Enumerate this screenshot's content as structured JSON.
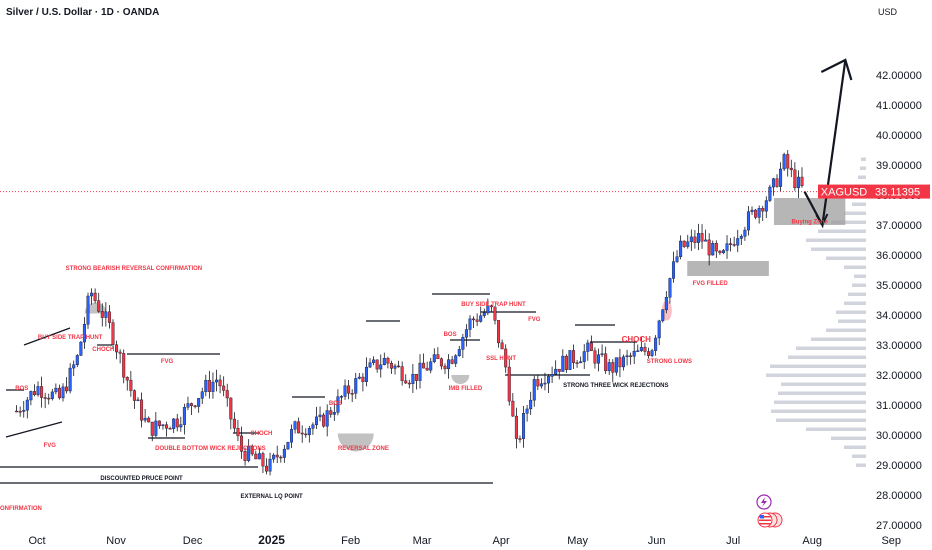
{
  "header": {
    "title": "Silver / U.S. Dollar · 1D · OANDA",
    "currency": "USD"
  },
  "price_tag": {
    "symbol": "XAGUSD",
    "value": "38.11395"
  },
  "colors": {
    "up": "#2962ff",
    "down": "#f23645",
    "annotation": "#f23645",
    "price_tag": "#f23645",
    "zone": "#9e9e9e",
    "volume_profile": "#d1d4dc"
  },
  "chart_data": {
    "type": "candlestick",
    "ylim": [
      27.0,
      43.0
    ],
    "y_ticks": [
      "27.00000",
      "28.00000",
      "29.00000",
      "30.00000",
      "31.00000",
      "32.00000",
      "33.00000",
      "34.00000",
      "35.00000",
      "36.00000",
      "37.00000",
      "38.00000",
      "39.00000",
      "40.00000",
      "41.00000",
      "42.00000"
    ],
    "x_ticks": [
      "Oct",
      "Nov",
      "Dec",
      "2025",
      "Feb",
      "Mar",
      "Apr",
      "May",
      "Jun",
      "Jul",
      "Aug",
      "Sep"
    ],
    "price_path": [
      [
        "2024-09-23",
        30.8
      ],
      [
        "2024-10-01",
        31.6
      ],
      [
        "2024-10-10",
        31.2
      ],
      [
        "2024-10-17",
        32.6
      ],
      [
        "2024-10-22",
        34.8
      ],
      [
        "2024-10-30",
        33.5
      ],
      [
        "2024-11-08",
        31.2
      ],
      [
        "2024-11-14",
        30.2
      ],
      [
        "2024-11-25",
        30.5
      ],
      [
        "2024-12-05",
        31.5
      ],
      [
        "2024-12-11",
        31.9
      ],
      [
        "2024-12-20",
        29.5
      ],
      [
        "2024-12-31",
        28.9
      ],
      [
        "2025-01-10",
        30.2
      ],
      [
        "2025-01-20",
        30.4
      ],
      [
        "2025-01-28",
        31.2
      ],
      [
        "2025-02-07",
        32.1
      ],
      [
        "2025-02-14",
        32.5
      ],
      [
        "2025-02-25",
        31.9
      ],
      [
        "2025-03-05",
        32.4
      ],
      [
        "2025-03-12",
        32.5
      ],
      [
        "2025-03-20",
        33.8
      ],
      [
        "2025-03-28",
        34.2
      ],
      [
        "2025-04-03",
        32.2
      ],
      [
        "2025-04-07",
        29.6
      ],
      [
        "2025-04-14",
        31.8
      ],
      [
        "2025-04-25",
        32.4
      ],
      [
        "2025-05-05",
        32.8
      ],
      [
        "2025-05-14",
        32.2
      ],
      [
        "2025-05-22",
        32.6
      ],
      [
        "2025-05-30",
        32.9
      ],
      [
        "2025-06-05",
        34.9
      ],
      [
        "2025-06-10",
        36.2
      ],
      [
        "2025-06-18",
        36.6
      ],
      [
        "2025-06-26",
        35.8
      ],
      [
        "2025-07-03",
        36.8
      ],
      [
        "2025-07-11",
        37.6
      ],
      [
        "2025-07-16",
        38.1
      ],
      [
        "2025-07-21",
        39.1
      ],
      [
        "2025-07-25",
        38.5
      ],
      [
        "2025-07-29",
        38.1
      ]
    ],
    "projection": [
      [
        "2025-07-29",
        38.11
      ],
      [
        "2025-08-05",
        37.0
      ],
      [
        "2025-08-14",
        42.5
      ]
    ],
    "zones": [
      {
        "label": "Buying Zone",
        "x0": "2025-07-17",
        "x1": "2025-08-14",
        "y0": 37.0,
        "y1": 37.9
      },
      {
        "label": "FVG FILLED",
        "x0": "2025-06-13",
        "x1": "2025-07-15",
        "y0": 35.3,
        "y1": 35.8
      }
    ],
    "annotations": [
      {
        "text": "STRONG BEARISH REVERSAL CONFIRMATION",
        "date": "2024-11-08",
        "price": 35.5
      },
      {
        "text": "BUY SIDE TRAP HUNT",
        "date": "2024-10-14",
        "price": 33.2
      },
      {
        "text": "CHOCH",
        "date": "2024-10-27",
        "price": 32.8
      },
      {
        "text": "BOS",
        "date": "2024-09-25",
        "price": 31.5
      },
      {
        "text": "FVG",
        "date": "2024-10-06",
        "price": 29.6
      },
      {
        "text": "FVG",
        "date": "2024-11-21",
        "price": 32.4
      },
      {
        "text": "DOUBLE BOTTOM WICK REJECTIONS",
        "date": "2024-12-08",
        "price": 29.5
      },
      {
        "text": "CHOCH",
        "date": "2024-12-28",
        "price": 30.0
      },
      {
        "text": "DISCOUNTED PRUCE POINT",
        "date": "2024-11-11",
        "price": 28.5
      },
      {
        "text": "EXTERNAL LQ POINT",
        "date": "2025-01-01",
        "price": 27.9
      },
      {
        "text": "BOS",
        "date": "2025-01-26",
        "price": 31.0
      },
      {
        "text": "REVERSAL ZONE",
        "date": "2025-02-06",
        "price": 29.5
      },
      {
        "text": "BOS",
        "date": "2025-03-12",
        "price": 33.3
      },
      {
        "text": "IMB FILLED",
        "date": "2025-03-18",
        "price": 31.5
      },
      {
        "text": "BUY SIDE TRAP HUNT",
        "date": "2025-03-29",
        "price": 34.3
      },
      {
        "text": "FVG",
        "date": "2025-04-14",
        "price": 33.8
      },
      {
        "text": "SSL HUNT",
        "date": "2025-04-01",
        "price": 32.5
      },
      {
        "text": "STRONG THREE WICK REJECTIONS",
        "date": "2025-05-16",
        "price": 31.6
      },
      {
        "text": "CHOCH",
        "date": "2025-05-24",
        "price": 33.1
      },
      {
        "text": "STRONG LOWS",
        "date": "2025-06-06",
        "price": 32.4
      },
      {
        "text": "Buying Zone",
        "date": "2025-07-31",
        "price": 37.05
      },
      {
        "text": "FVG FILLED",
        "date": "2025-06-22",
        "price": 35.0
      },
      {
        "text": "ONFIRMATION",
        "date": "2024-09-10",
        "price": 27.5
      }
    ]
  }
}
